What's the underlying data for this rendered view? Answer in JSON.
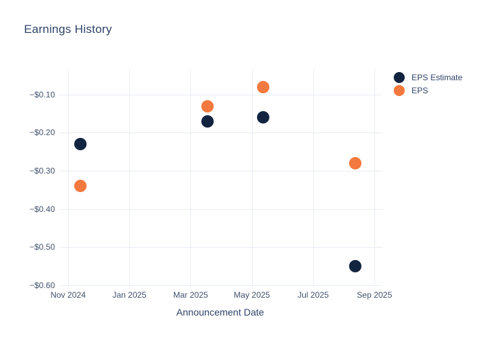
{
  "header": {
    "title": "Earnings History"
  },
  "colors": {
    "background": "#ffffff",
    "grid": "#e9edf4",
    "title_text": "#2e4369",
    "tick_text": "#42526e",
    "eps_estimate": "#132440",
    "eps": "#f4793e"
  },
  "chart_data": {
    "type": "scatter",
    "title": "Earnings History",
    "xlabel": "Announcement Date",
    "ylabel": "",
    "grid": true,
    "legend_position": "top-right-outside",
    "x_unit": "months_after_nov_2024",
    "x_range": [
      -0.25,
      10.18
    ],
    "y_range": [
      -0.602,
      -0.032
    ],
    "x_ticks": [
      {
        "m": 0,
        "label": "Nov 2024"
      },
      {
        "m": 2,
        "label": "Jan 2025"
      },
      {
        "m": 4,
        "label": "Mar 2025"
      },
      {
        "m": 6,
        "label": "May 2025"
      },
      {
        "m": 8,
        "label": "Jul 2025"
      },
      {
        "m": 10,
        "label": "Sep 2025"
      }
    ],
    "y_ticks": [
      {
        "v": -0.1,
        "label": "−$0.10"
      },
      {
        "v": -0.2,
        "label": "−$0.20"
      },
      {
        "v": -0.3,
        "label": "−$0.30"
      },
      {
        "v": -0.4,
        "label": "−$0.40"
      },
      {
        "v": -0.5,
        "label": "−$0.50"
      },
      {
        "v": -0.6,
        "label": "−$0.60"
      }
    ],
    "series": [
      {
        "name": "EPS Estimate",
        "color": "#132440",
        "marker_size_px": 18,
        "points": [
          {
            "x_months": 0.4,
            "y": -0.23
          },
          {
            "x_months": 4.56,
            "y": -0.17
          },
          {
            "x_months": 6.37,
            "y": -0.16
          },
          {
            "x_months": 9.37,
            "y": -0.55
          }
        ]
      },
      {
        "name": "EPS",
        "color": "#f4793e",
        "marker_size_px": 18,
        "points": [
          {
            "x_months": 0.4,
            "y": -0.34
          },
          {
            "x_months": 4.56,
            "y": -0.13
          },
          {
            "x_months": 6.37,
            "y": -0.08
          },
          {
            "x_months": 9.37,
            "y": -0.28
          }
        ]
      }
    ]
  }
}
